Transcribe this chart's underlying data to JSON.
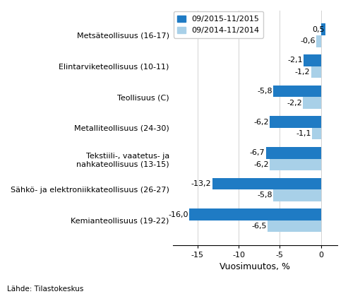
{
  "categories": [
    "Kemianteollisuus (19-22)",
    "Sähkö- ja elektroniikkateollisuus (26-27)",
    "Tekstiili-, vaatetus- ja\nnahkateollisuus (13-15)",
    "Metalliteollisuus (24-30)",
    "Teollisuus (C)",
    "Elintarviketeollisuus (10-11)",
    "Metsäteollisuus (16-17)"
  ],
  "series1_label": "09/2015-11/2015",
  "series2_label": "09/2014-11/2014",
  "series1_values": [
    -16.0,
    -13.2,
    -6.7,
    -6.2,
    -5.8,
    -2.1,
    0.5
  ],
  "series2_values": [
    -6.5,
    -5.8,
    -6.2,
    -1.1,
    -2.2,
    -1.2,
    -0.6
  ],
  "series1_color": "#1F7BC4",
  "series2_color": "#A8D0E8",
  "xlabel": "Vuosimuutos, %",
  "xlim": [
    -18,
    2
  ],
  "xticks": [
    -15,
    -10,
    -5,
    0
  ],
  "source_text": "Lähde: Tilastokeskus",
  "bar_height": 0.38,
  "label_fontsize": 8,
  "tick_fontsize": 8,
  "axis_label_fontsize": 9,
  "legend_fontsize": 8
}
